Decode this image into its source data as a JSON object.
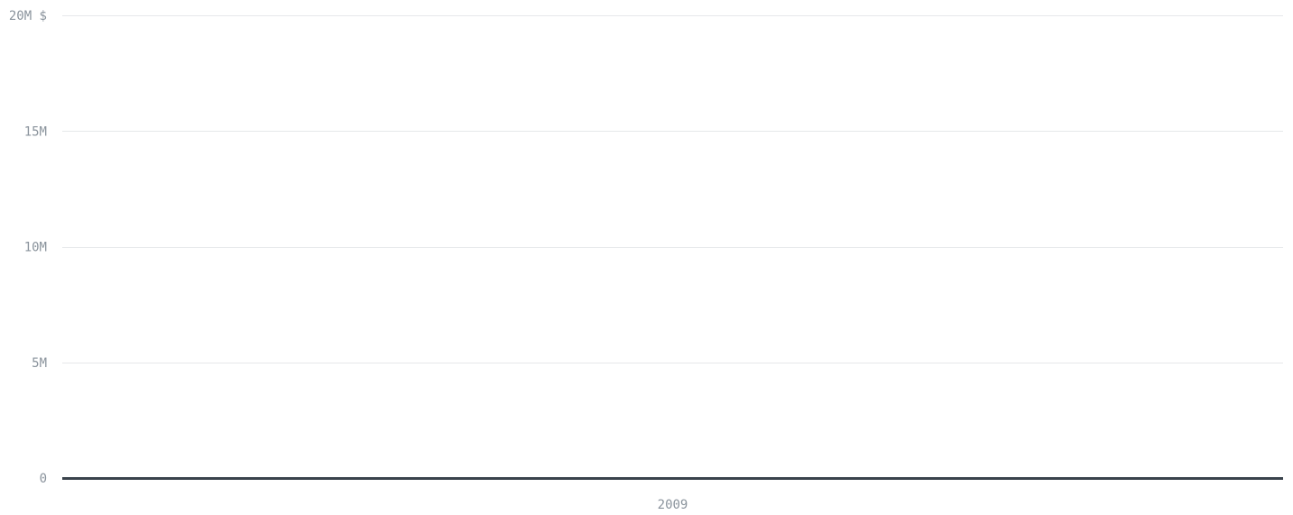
{
  "chart_data": {
    "type": "line",
    "title": "",
    "xlabel": "",
    "ylabel": "",
    "unit": "$",
    "categories": [
      "2009"
    ],
    "series": [
      {
        "values": [
          0
        ]
      }
    ],
    "ylim": [
      0,
      20000000
    ],
    "y_ticks": [
      {
        "value": 0,
        "label": "0"
      },
      {
        "value": 5000000,
        "label": "5M"
      },
      {
        "value": 10000000,
        "label": "10M"
      },
      {
        "value": 15000000,
        "label": "15M"
      },
      {
        "value": 20000000,
        "label": "20M $"
      }
    ],
    "grid": true,
    "legend": "none",
    "colors": {
      "grid": "#e6e8ea",
      "baseline": "#3a434c",
      "tick_text": "#8a939c",
      "series": "#3a434c"
    }
  }
}
